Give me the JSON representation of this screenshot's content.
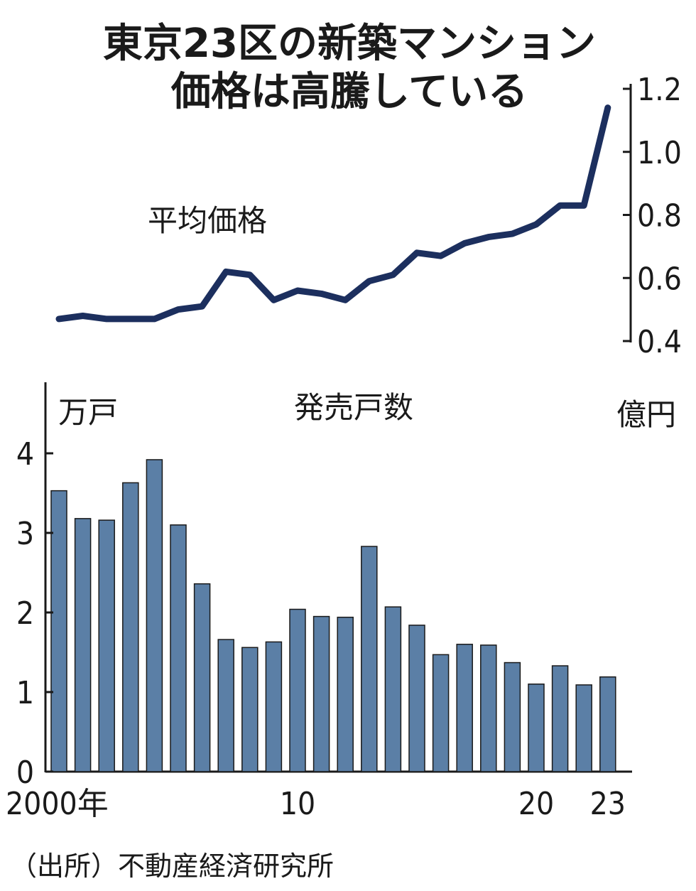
{
  "title_lines": [
    "東京23区の新築マンション",
    "価格は高騰している"
  ],
  "source": "（出所）不動産経済研究所",
  "chart_data": [
    {
      "type": "line",
      "series": [
        {
          "name": "平均価格",
          "x": [
            2000,
            2001,
            2002,
            2003,
            2004,
            2005,
            2006,
            2007,
            2008,
            2009,
            2010,
            2011,
            2012,
            2013,
            2014,
            2015,
            2016,
            2017,
            2018,
            2019,
            2020,
            2021,
            2022,
            2023
          ],
          "values": [
            0.47,
            0.48,
            0.47,
            0.47,
            0.47,
            0.5,
            0.51,
            0.62,
            0.61,
            0.53,
            0.56,
            0.55,
            0.53,
            0.59,
            0.61,
            0.68,
            0.67,
            0.71,
            0.73,
            0.74,
            0.77,
            0.83,
            0.83,
            1.14
          ]
        }
      ],
      "ylabel": "億円",
      "ylim": [
        0.4,
        1.2
      ],
      "yticks": [
        "0.4",
        "0.6",
        "0.8",
        "1.0",
        "1.2"
      ],
      "y_axis_side": "right"
    },
    {
      "type": "bar",
      "series": [
        {
          "name": "発売戸数",
          "x": [
            2000,
            2001,
            2002,
            2003,
            2004,
            2005,
            2006,
            2007,
            2008,
            2009,
            2010,
            2011,
            2012,
            2013,
            2014,
            2015,
            2016,
            2017,
            2018,
            2019,
            2020,
            2021,
            2022,
            2023
          ],
          "values": [
            3.53,
            3.18,
            3.16,
            3.63,
            3.92,
            3.1,
            2.36,
            1.66,
            1.56,
            1.63,
            2.04,
            1.95,
            1.94,
            2.83,
            2.07,
            1.84,
            1.47,
            1.6,
            1.59,
            1.37,
            1.1,
            1.33,
            1.09,
            1.19
          ]
        }
      ],
      "ylabel": "万戸",
      "ylim": [
        0,
        4.8
      ],
      "yticks": [
        "0",
        "1",
        "2",
        "3",
        "4"
      ],
      "y_axis_side": "left",
      "xticks": [
        "2000年",
        "10",
        "20",
        "23"
      ],
      "bar_color": "#5b7fa6"
    }
  ]
}
